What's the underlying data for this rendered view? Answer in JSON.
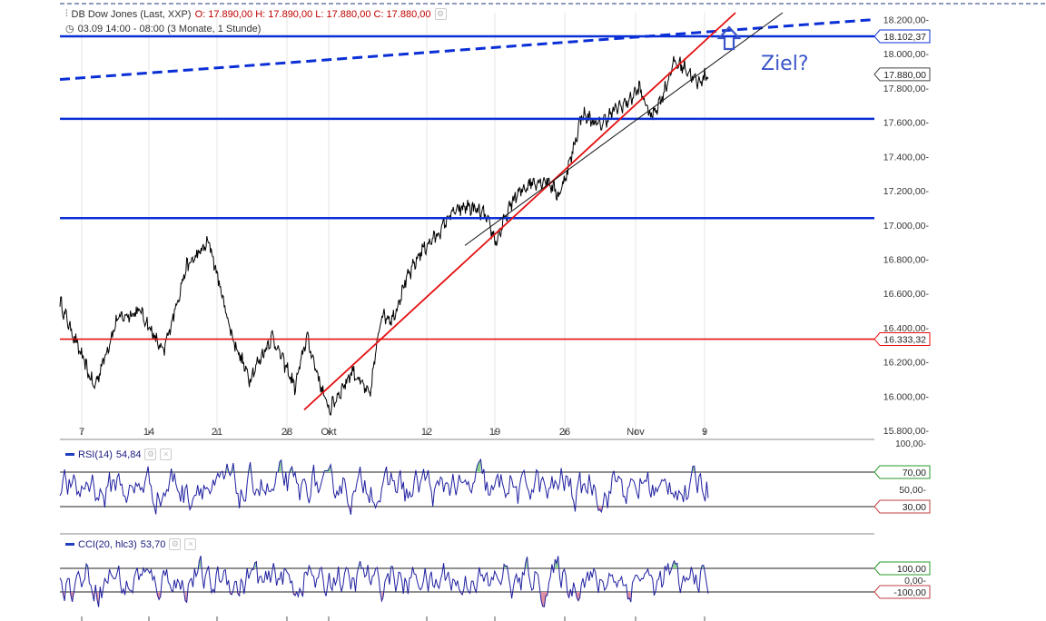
{
  "header": {
    "instrument": "DB Dow Jones (Last, XXP)",
    "ohlc": "O: 17.890,00  H: 17.890,00  L: 17.880,00  C: 17.880,00",
    "range": "03.09 14:00 - 08:00 (3 Monate, 1 Stunde)"
  },
  "annotation": {
    "text": "Ziel?"
  },
  "chart_data": [
    {
      "type": "line",
      "ylim": [
        15800,
        18240
      ],
      "y_ticks": [
        "18.200,00",
        "18.000,00",
        "17.800,00",
        "17.600,00",
        "17.400,00",
        "17.200,00",
        "17.000,00",
        "16.800,00",
        "16.600,00",
        "16.400,00",
        "16.200,00",
        "16.000,00",
        "15.800,00"
      ],
      "x_ticks": [
        "7",
        "14",
        "21",
        "28",
        "Okt",
        "12",
        "19",
        "26",
        "Nov",
        "9"
      ],
      "price_labels": {
        "last": "17.880,00",
        "top_line": "18.102,37",
        "red_line": "16.333,32"
      },
      "horizontal_lines": [
        18102,
        17620,
        17040,
        16333
      ],
      "series_anchors": [
        [
          0,
          16550
        ],
        [
          6,
          16050
        ],
        [
          10,
          16450
        ],
        [
          14,
          16500
        ],
        [
          18,
          16250
        ],
        [
          22,
          16750
        ],
        [
          26,
          16900
        ],
        [
          30,
          16350
        ],
        [
          33,
          16100
        ],
        [
          37,
          16350
        ],
        [
          41,
          16050
        ],
        [
          43,
          16350
        ],
        [
          46,
          16000
        ],
        [
          47,
          15920
        ],
        [
          51,
          16150
        ],
        [
          54,
          16000
        ],
        [
          56,
          16480
        ],
        [
          58,
          16450
        ],
        [
          60,
          16650
        ],
        [
          63,
          16850
        ],
        [
          66,
          16950
        ],
        [
          68,
          17060
        ],
        [
          71,
          17110
        ],
        [
          74,
          17060
        ],
        [
          76,
          16900
        ],
        [
          79,
          17150
        ],
        [
          82,
          17250
        ],
        [
          85,
          17260
        ],
        [
          87,
          17170
        ],
        [
          89,
          17380
        ],
        [
          91,
          17650
        ],
        [
          94,
          17580
        ],
        [
          97,
          17680
        ],
        [
          99,
          17720
        ],
        [
          101,
          17800
        ],
        [
          103,
          17630
        ],
        [
          105,
          17750
        ],
        [
          107,
          17950
        ],
        [
          109,
          17920
        ],
        [
          111,
          17830
        ],
        [
          113,
          17880
        ]
      ]
    },
    {
      "type": "line",
      "title": "RSI(14)",
      "value_label": "54,84",
      "ylim": [
        0,
        100
      ],
      "y_ticks": [
        "100,00",
        "70,00",
        "50,00",
        "30,00"
      ],
      "levels": [
        70,
        30
      ]
    },
    {
      "type": "line",
      "title": "CCI(20, hlc3)",
      "value_label": "53,70",
      "ylim": [
        -200,
        200
      ],
      "y_ticks": [
        "100,00",
        "0,00",
        "-100,00"
      ],
      "levels": [
        100,
        -100
      ]
    }
  ],
  "colors": {
    "price": "#000000",
    "blue": "#0a2fd6",
    "red": "#e51010",
    "indicator": "#2020a0",
    "overbought": "#8fd18f",
    "oversold": "#e090a0"
  }
}
